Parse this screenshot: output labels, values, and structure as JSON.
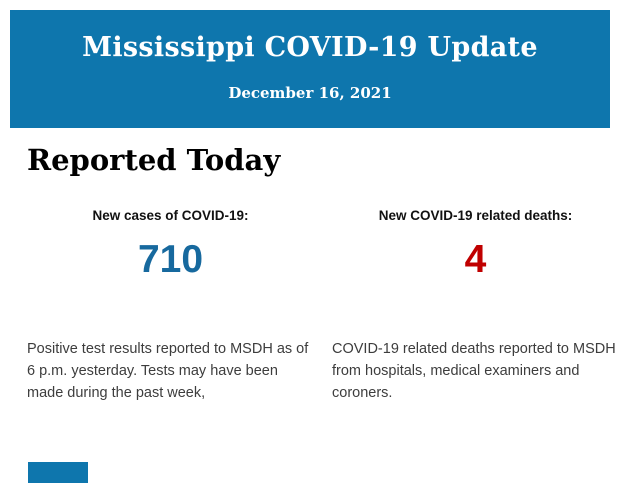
{
  "header": {
    "title": "Mississippi COVID-19 Update",
    "date": "December 16, 2021",
    "background_color": "#0e76ad",
    "text_color": "#ffffff"
  },
  "main": {
    "section_title": "Reported Today",
    "stats": [
      {
        "label": "New cases of COVID-19:",
        "value": "710",
        "value_color": "#17699e",
        "description": "Positive test results reported to MSDH as of 6 p.m. yesterday. Tests may have been made during the past week,"
      },
      {
        "label": "New COVID-19 related deaths:",
        "value": "4",
        "value_color": "#c00000",
        "description": "COVID-19 related deaths reported to MSDH from hospitals, medical examiners and coroners."
      }
    ]
  },
  "footer": {
    "partial_banner_color": "#0e76ad"
  }
}
